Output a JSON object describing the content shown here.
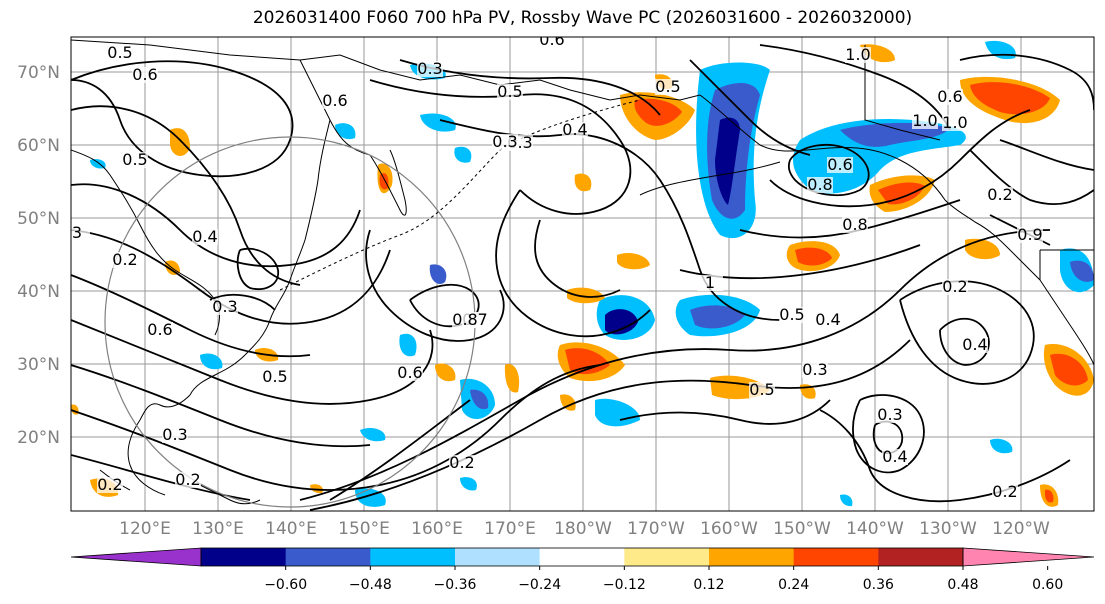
{
  "title": "2026031400 F060 700 hPa PV, Rossby Wave PC (2026031600 - 2026032000)",
  "lat_labels": [
    "70°N",
    "60°N",
    "50°N",
    "40°N",
    "30°N",
    "20°N"
  ],
  "lon_labels": [
    "120°E",
    "130°E",
    "140°E",
    "150°E",
    "160°E",
    "170°E",
    "180°W",
    "170°W",
    "160°W",
    "150°W",
    "140°W",
    "130°W",
    "120°W"
  ],
  "colorbar": {
    "ticks": [
      "−0.60",
      "−0.48",
      "−0.36",
      "−0.24",
      "−0.12",
      "0.12",
      "0.24",
      "0.36",
      "0.48",
      "0.60"
    ],
    "colors": [
      "#9932cc",
      "#00008b",
      "#3a5bcc",
      "#00bfff",
      "#b0e0ff",
      "#ffffff",
      "#ffea8a",
      "#ffa500",
      "#ff4500",
      "#b22222",
      "#ff85b0"
    ]
  },
  "contour_labels": [
    "0.5",
    "0.6",
    "0.3",
    "0.5",
    "0.6",
    "0.4",
    "0.3",
    "1.0",
    "0.6",
    "1.0",
    "0.5",
    "0.6",
    "0.5",
    "0.2",
    "0.4",
    "0.3",
    "0.2",
    "0.6",
    "0.3",
    "0.5",
    "0.6",
    "0.8",
    "0.7",
    "0.5",
    "0.4",
    "0.3",
    "0.5",
    "0.2",
    "0.4",
    "0.8",
    "0.9",
    "0.2",
    "0.2",
    "3",
    "1",
    "0.6",
    "0.8",
    "0.3",
    "0.4",
    "0.2",
    "0.2",
    "0.3",
    "1.0"
  ]
}
